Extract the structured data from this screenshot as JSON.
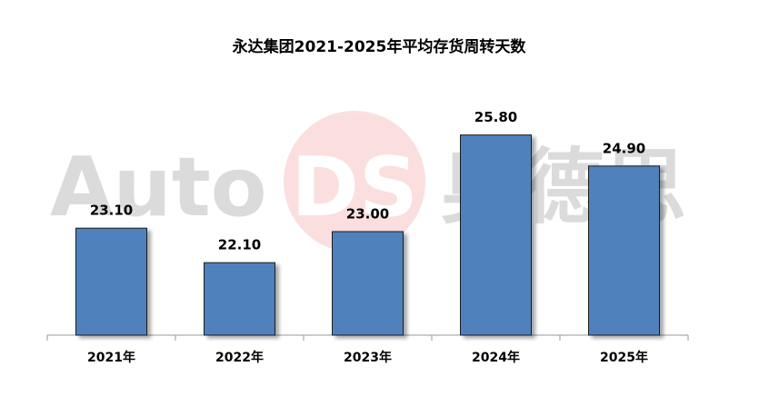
{
  "chart_data": {
    "type": "bar",
    "title": "永达集团2021-2025年平均存货周转天数",
    "categories": [
      "2021年",
      "2022年",
      "2023年",
      "2024年",
      "2025年"
    ],
    "values": [
      23.1,
      22.1,
      23.0,
      25.8,
      24.9
    ],
    "value_labels": [
      "23.10",
      "22.10",
      "23.00",
      "25.80",
      "24.90"
    ],
    "color": "#4f81bd",
    "ylim": [
      20,
      27
    ],
    "watermark": [
      "Auto",
      "DS",
      "奥德思"
    ]
  }
}
